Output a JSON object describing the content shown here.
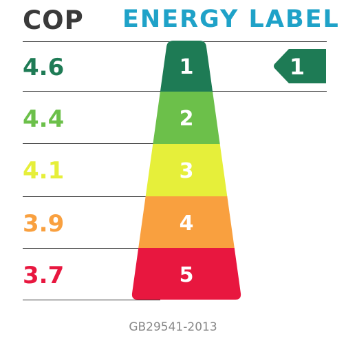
{
  "header": {
    "cop_title": "COP",
    "label_title": "ENERGY LABEL"
  },
  "rows": [
    {
      "cop": "4.6",
      "grade": "1",
      "color": "#1e7b55"
    },
    {
      "cop": "4.4",
      "grade": "2",
      "color": "#6cc04a"
    },
    {
      "cop": "4.1",
      "grade": "3",
      "color": "#e6ef3a"
    },
    {
      "cop": "3.9",
      "grade": "4",
      "color": "#f9a03f"
    },
    {
      "cop": "3.7",
      "grade": "5",
      "color": "#e8173f"
    }
  ],
  "indicator": {
    "grade": "1",
    "color": "#1e7b55"
  },
  "footer": {
    "standard": "GB29541-2013"
  }
}
